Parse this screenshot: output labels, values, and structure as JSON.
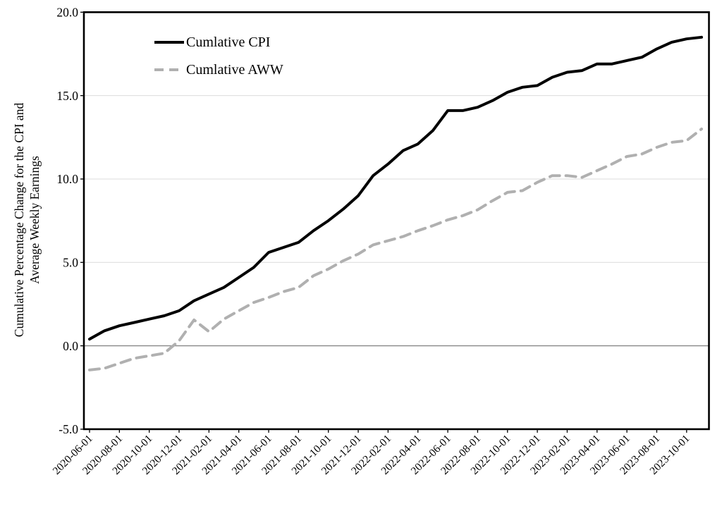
{
  "chart_data": {
    "type": "line",
    "title": "",
    "ylabel_lines": [
      "Cumulative Percentage Change for the CPI and",
      "Average Weekly Earnings"
    ],
    "xlabel": "",
    "ylim": [
      -5,
      20
    ],
    "grid": "horizontal",
    "legend_position": "top-left-inside",
    "x_label_rotation": 45,
    "y_ticks": [
      -5,
      0,
      5,
      10,
      15,
      20
    ],
    "y_tick_labels": [
      "-5.0",
      "0.0",
      "5.0",
      "10.0",
      "15.0",
      "20.0"
    ],
    "x_tick_labels": [
      "2020-06-01",
      "2020-08-01",
      "2020-10-01",
      "2020-12-01",
      "2021-02-01",
      "2021-04-01",
      "2021-06-01",
      "2021-08-01",
      "2021-10-01",
      "2021-12-01",
      "2022-02-01",
      "2022-04-01",
      "2022-06-01",
      "2022-08-01",
      "2022-10-01",
      "2022-12-01",
      "2023-02-01",
      "2023-04-01",
      "2023-06-01",
      "2023-08-01",
      "2023-10-01"
    ],
    "x": [
      "2020-06-01",
      "2020-07-01",
      "2020-08-01",
      "2020-09-01",
      "2020-10-01",
      "2020-11-01",
      "2020-12-01",
      "2021-01-01",
      "2021-02-01",
      "2021-03-01",
      "2021-04-01",
      "2021-05-01",
      "2021-06-01",
      "2021-07-01",
      "2021-08-01",
      "2021-09-01",
      "2021-10-01",
      "2021-11-01",
      "2021-12-01",
      "2022-01-01",
      "2022-02-01",
      "2022-03-01",
      "2022-04-01",
      "2022-05-01",
      "2022-06-01",
      "2022-07-01",
      "2022-08-01",
      "2022-09-01",
      "2022-10-01",
      "2022-11-01",
      "2022-12-01",
      "2023-01-01",
      "2023-02-01",
      "2023-03-01",
      "2023-04-01",
      "2023-05-01",
      "2023-06-01",
      "2023-07-01",
      "2023-08-01",
      "2023-09-01",
      "2023-10-01",
      "2023-11-01"
    ],
    "series": [
      {
        "name": "Cumlative CPI",
        "color": "#000000",
        "style": "solid",
        "values": [
          0.4,
          0.9,
          1.2,
          1.4,
          1.6,
          1.8,
          2.1,
          2.7,
          3.1,
          3.5,
          4.1,
          4.7,
          5.6,
          5.9,
          6.2,
          6.9,
          7.5,
          8.2,
          9.0,
          10.2,
          10.9,
          11.7,
          12.1,
          12.9,
          14.1,
          14.1,
          14.3,
          14.7,
          15.2,
          15.5,
          15.6,
          16.1,
          16.4,
          16.5,
          16.9,
          16.9,
          17.1,
          17.3,
          17.8,
          18.2,
          18.4,
          18.5
        ]
      },
      {
        "name": "Cumlative AWW",
        "color": "#b0b0b0",
        "style": "dashed",
        "values": [
          -1.45,
          -1.35,
          -1.05,
          -0.75,
          -0.6,
          -0.45,
          0.3,
          1.55,
          0.85,
          1.6,
          2.1,
          2.6,
          2.9,
          3.25,
          3.5,
          4.2,
          4.6,
          5.1,
          5.5,
          6.05,
          6.3,
          6.55,
          6.9,
          7.2,
          7.55,
          7.8,
          8.15,
          8.7,
          9.2,
          9.3,
          9.8,
          10.2,
          10.2,
          10.1,
          10.5,
          10.9,
          11.35,
          11.5,
          11.9,
          12.2,
          12.3,
          13.0
        ]
      }
    ],
    "colors": {
      "cpi_line": "#000000",
      "aww_line": "#b0b0b0",
      "gridline": "#dcdcdc",
      "zero_line": "#878787",
      "plot_border": "#000000",
      "background": "#ffffff"
    }
  }
}
